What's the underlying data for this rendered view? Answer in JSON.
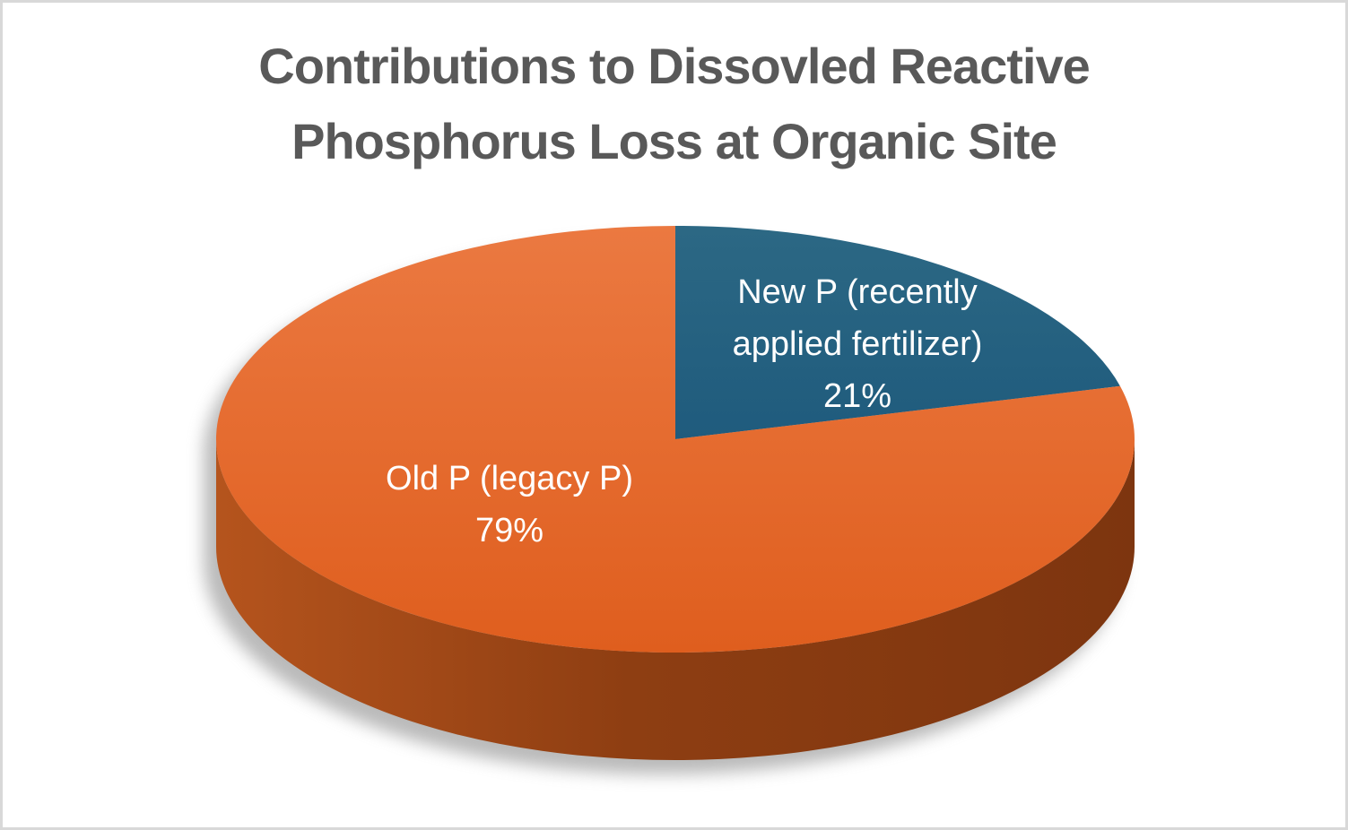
{
  "window": {
    "background_color": "#FFFFFF",
    "border_color": "#D8D8D8"
  },
  "chart_data": {
    "type": "pie",
    "style": "3d-pie",
    "title": "Contributions to Dissovled Reactive Phosphorus Loss at Organic Site",
    "title_lines": [
      "Contributions to Dissovled Reactive",
      "Phosphorus Loss at Organic Site"
    ],
    "title_color": "#595959",
    "legend": "none",
    "start_angle_deg": 0,
    "direction": "clockwise",
    "slices": [
      {
        "key": "new-p",
        "label": "New P (recently applied fertilizer)",
        "value": 21,
        "pct_label": "21%",
        "color": "#26617F",
        "color_top": "#2C6884",
        "color_bottom": "#1F5B7D"
      },
      {
        "key": "old-p",
        "label": "Old P (legacy P)",
        "value": 79,
        "pct_label": "79%",
        "color": "#E4692E",
        "color_top": "#EB7941",
        "color_bottom": "#DF5E1E"
      }
    ],
    "label_text_color": "#FFFFFF",
    "side_gradient": [
      "#B5541D",
      "#8E3E12",
      "#7D350F"
    ],
    "shadow_color": "#8C8C8C"
  }
}
